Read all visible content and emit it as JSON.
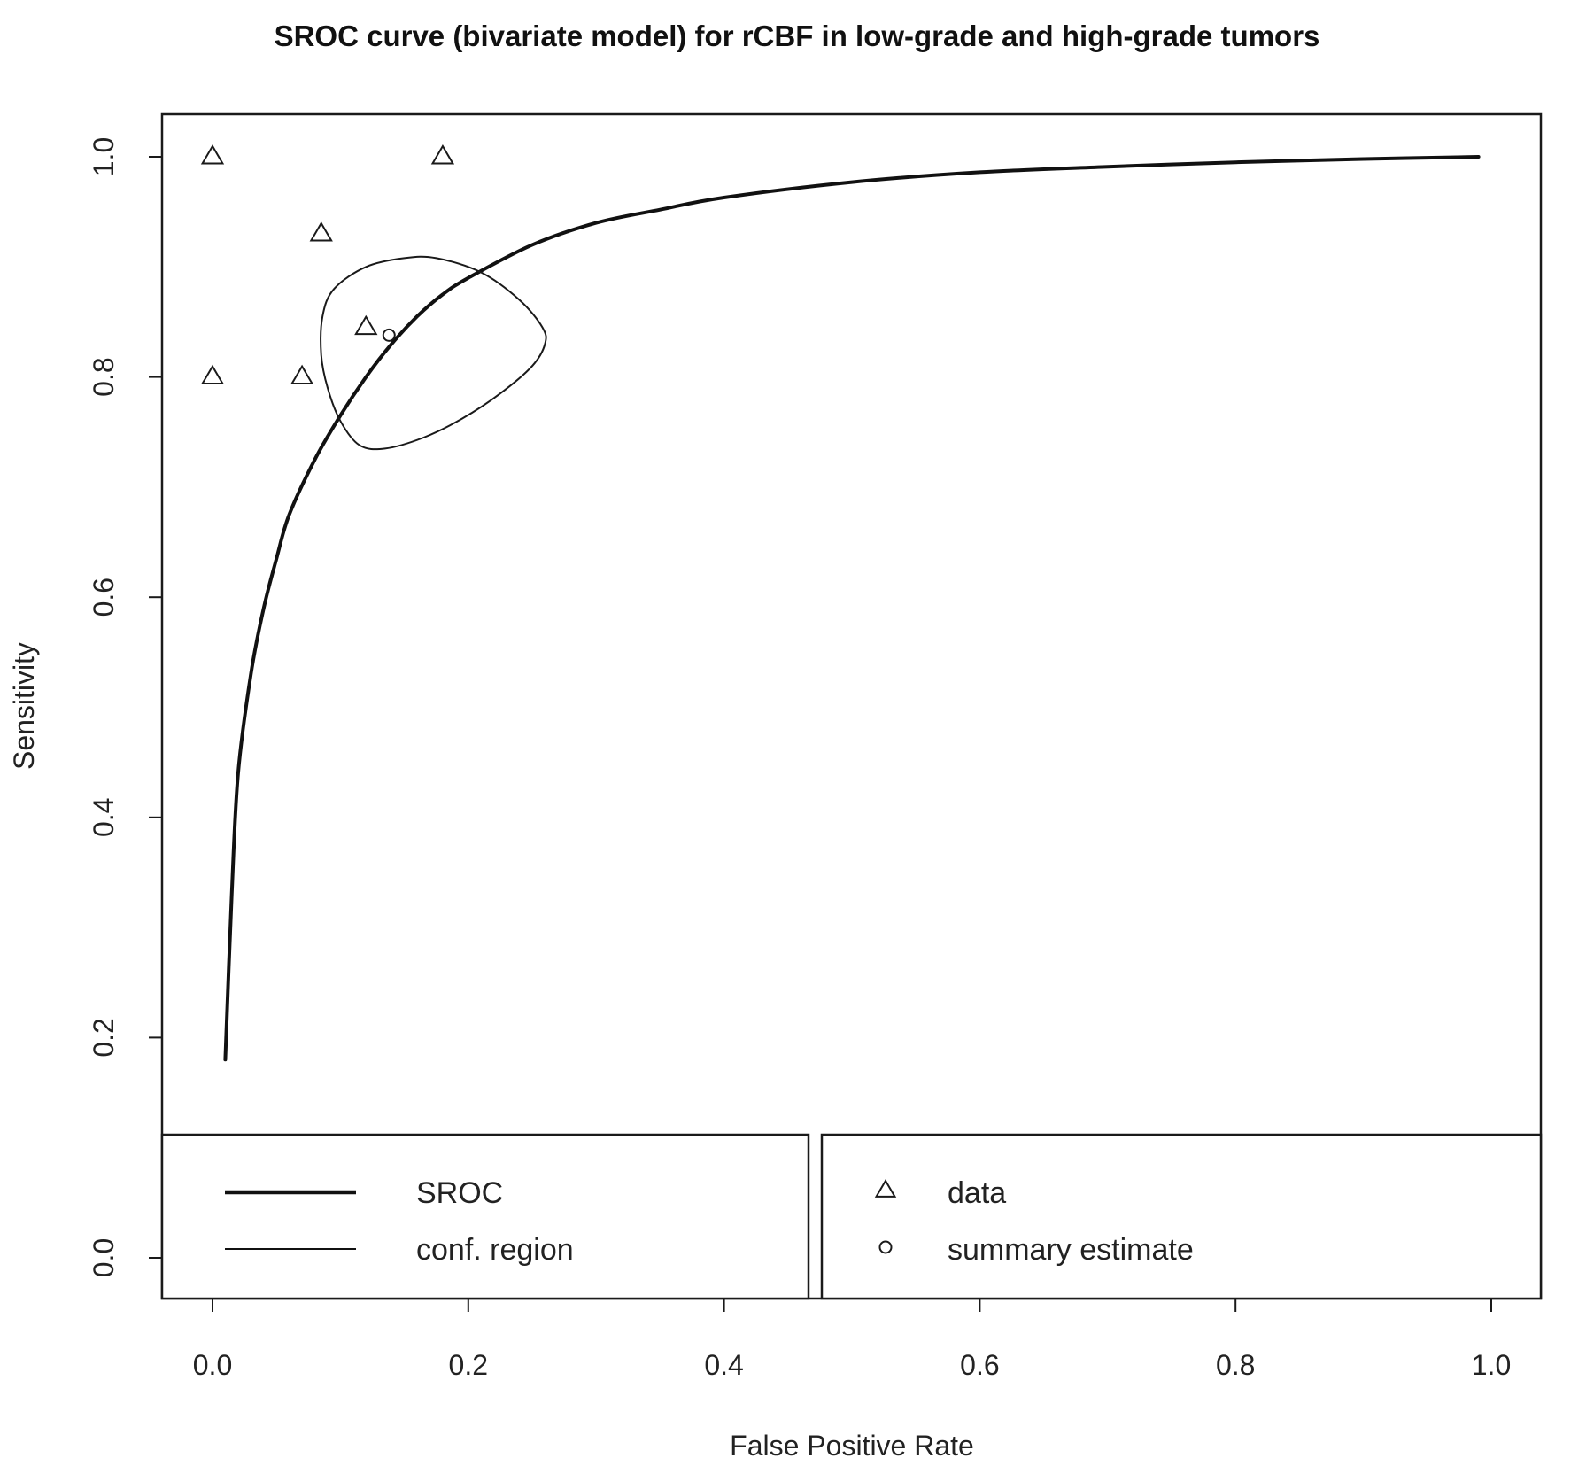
{
  "chart_data": {
    "type": "line",
    "title": "SROC curve (bivariate model) for rCBF in low-grade and high-grade tumors",
    "xlabel": "False Positive Rate",
    "ylabel": "Sensitivity",
    "xlim": [
      0,
      1
    ],
    "ylim": [
      0,
      1
    ],
    "x_ticks": [
      "0.0",
      "0.2",
      "0.4",
      "0.6",
      "0.8",
      "1.0"
    ],
    "y_ticks": [
      "0.0",
      "0.2",
      "0.4",
      "0.6",
      "0.8",
      "1.0"
    ],
    "grid": false,
    "legend_placement": "bottom",
    "series": [
      {
        "name": "SROC",
        "kind": "line",
        "points": [
          [
            0.01,
            0.18
          ],
          [
            0.015,
            0.33
          ],
          [
            0.02,
            0.44
          ],
          [
            0.03,
            0.53
          ],
          [
            0.04,
            0.59
          ],
          [
            0.05,
            0.635
          ],
          [
            0.06,
            0.675
          ],
          [
            0.08,
            0.725
          ],
          [
            0.1,
            0.765
          ],
          [
            0.12,
            0.8
          ],
          [
            0.14,
            0.83
          ],
          [
            0.16,
            0.855
          ],
          [
            0.18,
            0.875
          ],
          [
            0.2,
            0.89
          ],
          [
            0.25,
            0.92
          ],
          [
            0.3,
            0.94
          ],
          [
            0.35,
            0.952
          ],
          [
            0.4,
            0.963
          ],
          [
            0.5,
            0.977
          ],
          [
            0.6,
            0.986
          ],
          [
            0.7,
            0.991
          ],
          [
            0.8,
            0.995
          ],
          [
            0.9,
            0.998
          ],
          [
            0.99,
            1.0
          ]
        ]
      },
      {
        "name": "conf. region",
        "kind": "closed-curve",
        "points": [
          [
            0.175,
            0.908
          ],
          [
            0.21,
            0.895
          ],
          [
            0.24,
            0.87
          ],
          [
            0.258,
            0.845
          ],
          [
            0.26,
            0.83
          ],
          [
            0.25,
            0.81
          ],
          [
            0.225,
            0.785
          ],
          [
            0.195,
            0.762
          ],
          [
            0.165,
            0.745
          ],
          [
            0.135,
            0.735
          ],
          [
            0.115,
            0.738
          ],
          [
            0.1,
            0.76
          ],
          [
            0.09,
            0.79
          ],
          [
            0.085,
            0.82
          ],
          [
            0.086,
            0.855
          ],
          [
            0.095,
            0.88
          ],
          [
            0.12,
            0.9
          ],
          [
            0.15,
            0.908
          ]
        ]
      },
      {
        "name": "data",
        "kind": "triangle",
        "points": [
          [
            0.0,
            1.0
          ],
          [
            0.18,
            1.0
          ],
          [
            0.085,
            0.93
          ],
          [
            0.12,
            0.845
          ],
          [
            0.0,
            0.8
          ],
          [
            0.07,
            0.8
          ]
        ]
      },
      {
        "name": "summary estimate",
        "kind": "circle",
        "points": [
          [
            0.138,
            0.838
          ]
        ]
      }
    ],
    "legend": {
      "left": [
        "SROC",
        "conf. region"
      ],
      "right": [
        "data",
        "summary estimate"
      ]
    }
  }
}
